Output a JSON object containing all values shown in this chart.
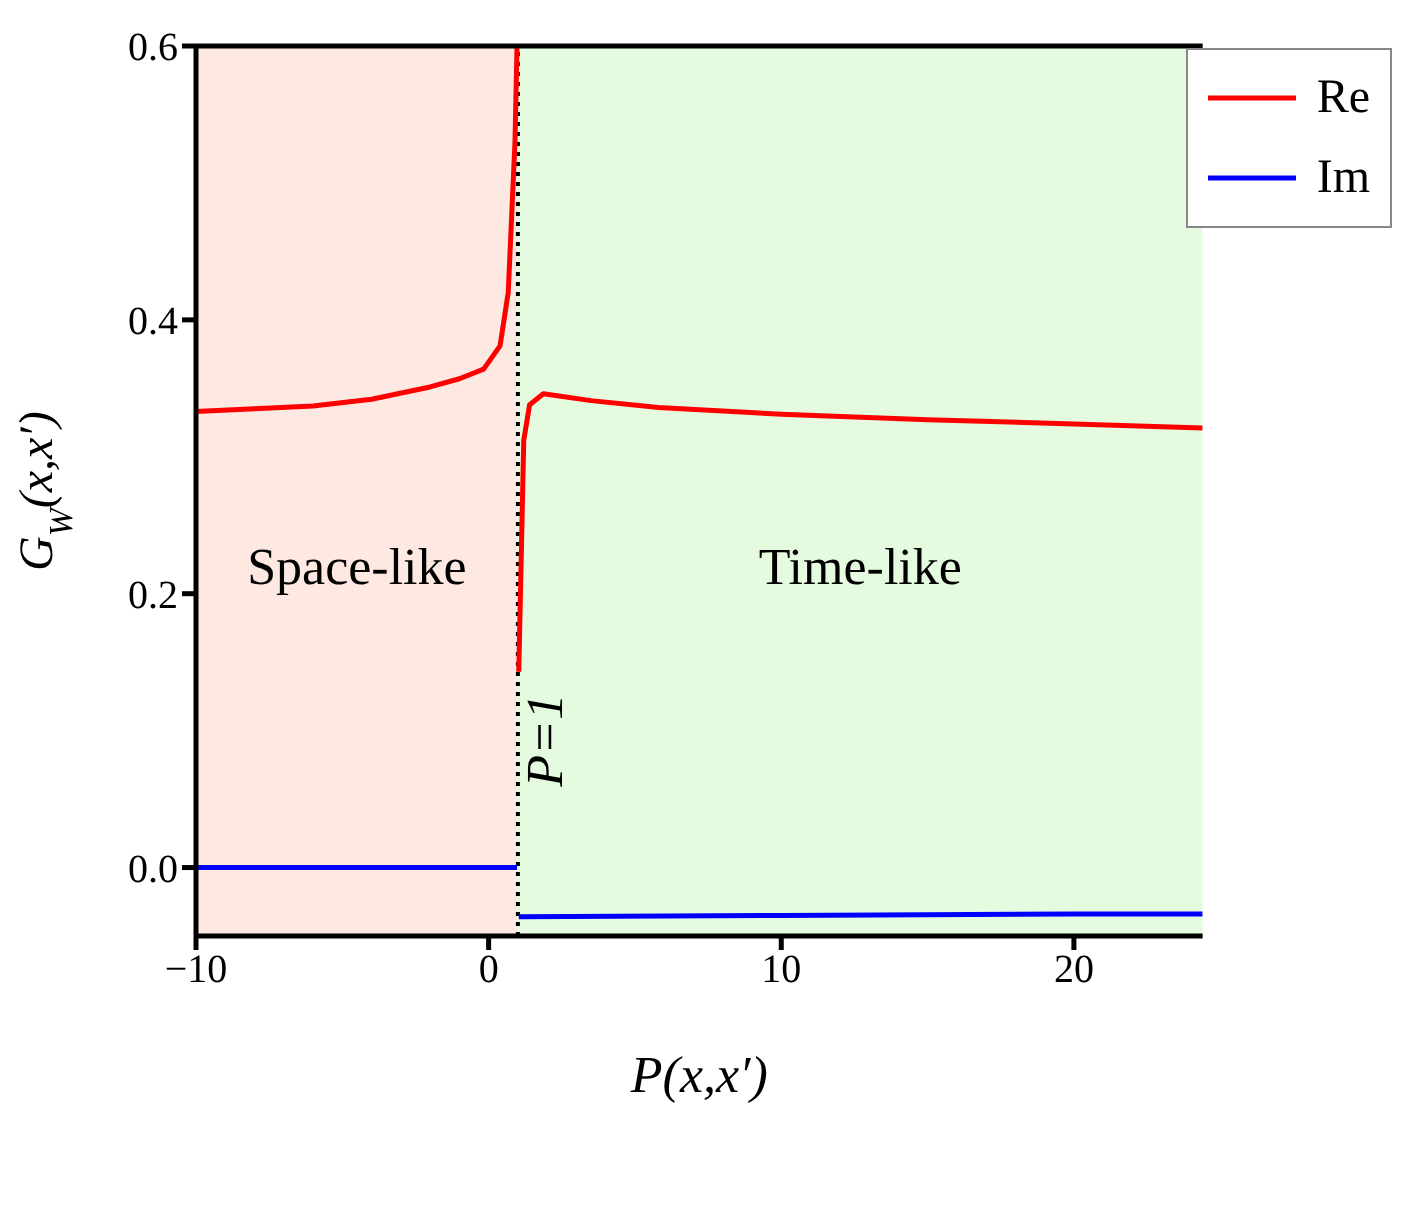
{
  "chart_data": {
    "type": "line",
    "xlabel": "P(x,x′)",
    "ylabel": "G$_{W}$(x,x′)",
    "xlim": [
      -10,
      24.4
    ],
    "xticks": [
      -10,
      0,
      10,
      20
    ],
    "ylim": [
      -0.05,
      0.6
    ],
    "yticks": [
      {
        "value": 0,
        "label": "0.0"
      },
      {
        "value": 0.2,
        "label": "0.2"
      },
      {
        "value": 0.4,
        "label": "0.4"
      },
      {
        "value": 0.6,
        "label": "0.6"
      }
    ],
    "grid": false,
    "legend": "top right",
    "marker": "none",
    "line_style": "solid",
    "series": [
      {
        "name": "Re",
        "color": "#ff0000",
        "x": [
          -10,
          -8,
          -6,
          -4,
          -2,
          -1,
          -0.17,
          0.39,
          0.67,
          0.9,
          0.97,
          1,
          1.03,
          1.2,
          1.4,
          1.87,
          3.5,
          5.8,
          10,
          15,
          20,
          24.4
        ],
        "values": [
          0.333,
          0.335,
          0.337,
          0.342,
          0.351,
          0.357,
          0.364,
          0.381,
          0.42,
          0.53,
          0.6,
          null,
          0.143,
          0.312,
          0.338,
          0.346,
          0.341,
          0.336,
          0.331,
          0.327,
          0.324,
          0.321
        ]
      },
      {
        "name": "Im",
        "color": "#0000ff",
        "x": [
          -10,
          0.97,
          1,
          1.03,
          10,
          20,
          24.4
        ],
        "values": [
          0.0,
          0.0,
          null,
          -0.036,
          -0.035,
          -0.034,
          -0.034
        ]
      }
    ],
    "bands": [
      {
        "axis": "x",
        "from": -10,
        "to": 1,
        "label": "Space-like",
        "color": "#fde9e1"
      },
      {
        "axis": "x",
        "from": 1,
        "to": 24.4,
        "label": "Time-like",
        "color": "#e4fbe0"
      }
    ],
    "ref_lines": [
      {
        "axis": "x",
        "value": 1,
        "label": "P=1",
        "color": "#000000",
        "line_style": "dotted"
      }
    ]
  }
}
